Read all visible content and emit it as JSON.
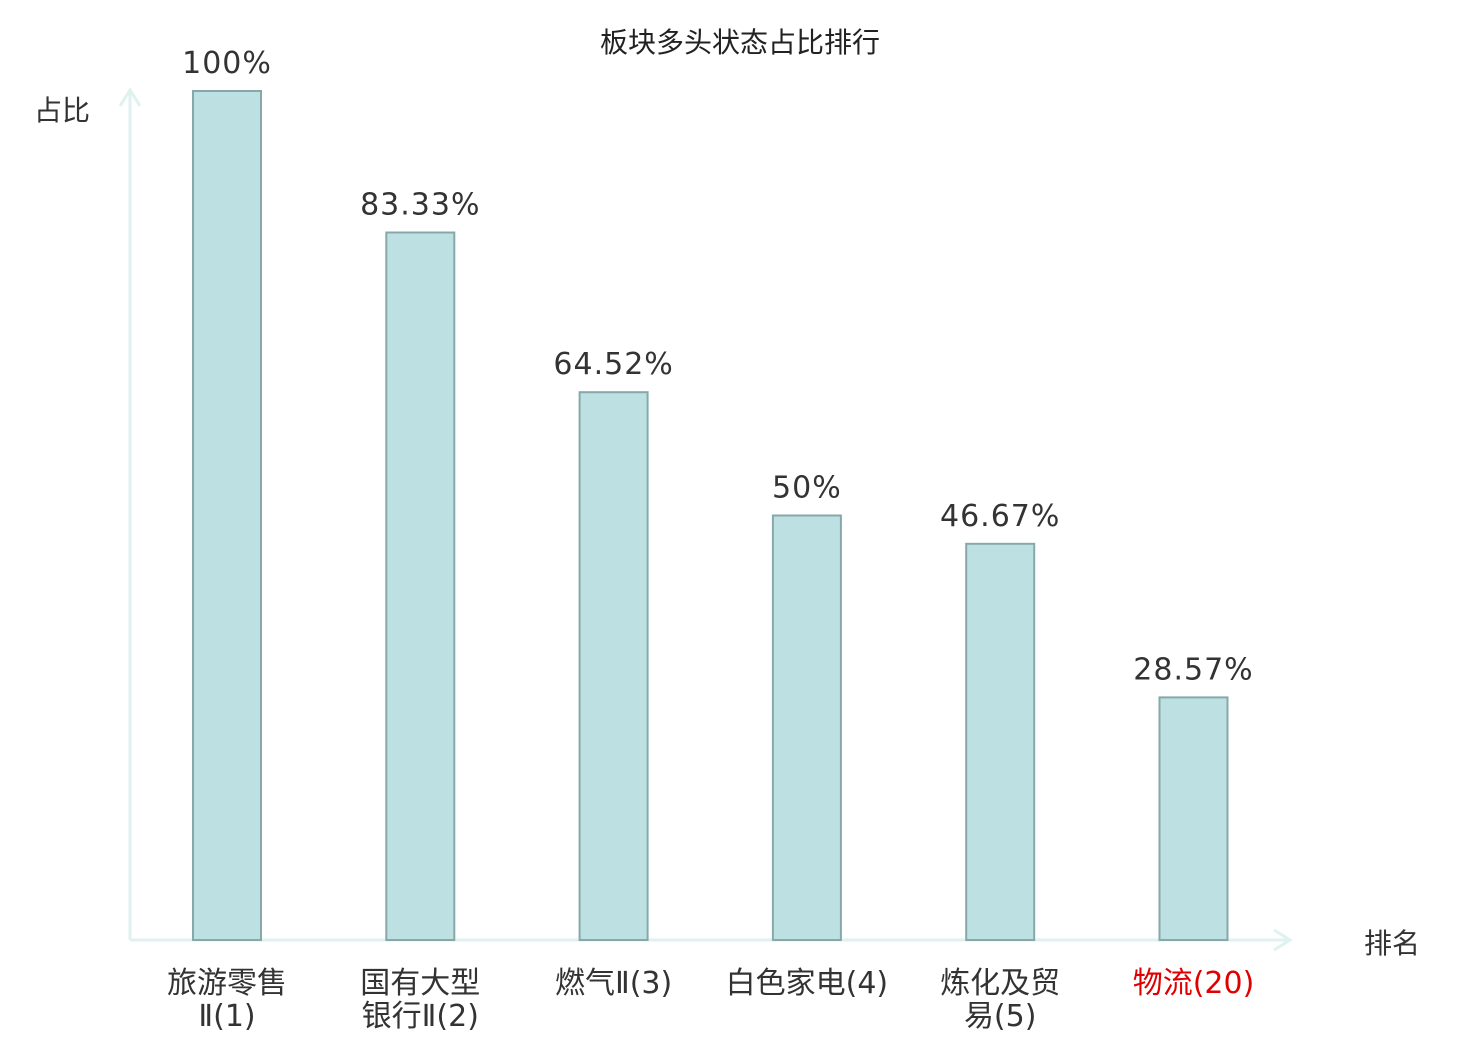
{
  "chart_data": {
    "type": "bar",
    "title": "板块多头状态占比排行",
    "ylabel": "占比",
    "xlabel": "排名",
    "ylim": [
      0,
      100
    ],
    "grid": false,
    "categories": [
      {
        "lines": [
          "旅游零售",
          "Ⅱ(1)"
        ],
        "highlight": false
      },
      {
        "lines": [
          "国有大型",
          "银行Ⅱ(2)"
        ],
        "highlight": false
      },
      {
        "lines": [
          "燃气Ⅱ(3)"
        ],
        "highlight": false
      },
      {
        "lines": [
          "白色家电(4)"
        ],
        "highlight": false
      },
      {
        "lines": [
          "炼化及贸",
          "易(5)"
        ],
        "highlight": false
      },
      {
        "lines": [
          "物流(20)"
        ],
        "highlight": true
      }
    ],
    "values": [
      100,
      83.33,
      64.52,
      50,
      46.67,
      28.57
    ],
    "value_labels": [
      "100%",
      "83.33%",
      "64.52%",
      "50%",
      "46.67%",
      "28.57%"
    ]
  },
  "colors": {
    "bar_fill": "#bde0e2",
    "bar_stroke": "#86a8aa",
    "axis": "#dff2ef",
    "text": "#333333",
    "title_text": "#222222",
    "highlight_text": "#e00000"
  }
}
